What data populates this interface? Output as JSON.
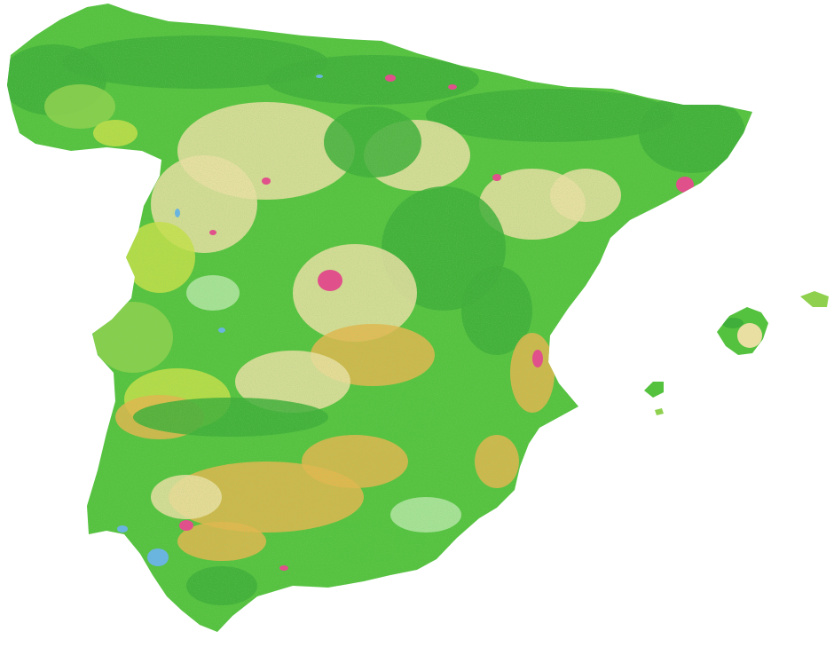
{
  "map": {
    "background_color": "#ffffff",
    "land_cover_colors": {
      "forest_dark": "#3fae3a",
      "forest": "#55c23f",
      "shrub": "#8fd14f",
      "grassland_yellow": "#c6df4a",
      "cropland": "#eadfa3",
      "dry_cropland": "#e3b64f",
      "pasture_light": "#b5e6a6",
      "water": "#6ab4e0",
      "urban": "#e0508a"
    },
    "regions": [
      "mainland-iberia",
      "mallorca",
      "menorca",
      "ibiza",
      "formentera"
    ]
  }
}
